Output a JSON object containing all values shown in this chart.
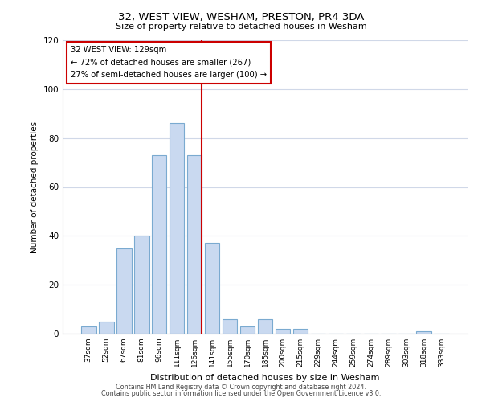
{
  "title": "32, WEST VIEW, WESHAM, PRESTON, PR4 3DA",
  "subtitle": "Size of property relative to detached houses in Wesham",
  "xlabel": "Distribution of detached houses by size in Wesham",
  "ylabel": "Number of detached properties",
  "bar_labels": [
    "37sqm",
    "52sqm",
    "67sqm",
    "81sqm",
    "96sqm",
    "111sqm",
    "126sqm",
    "141sqm",
    "155sqm",
    "170sqm",
    "185sqm",
    "200sqm",
    "215sqm",
    "229sqm",
    "244sqm",
    "259sqm",
    "274sqm",
    "289sqm",
    "303sqm",
    "318sqm",
    "333sqm"
  ],
  "bar_values": [
    3,
    5,
    35,
    40,
    73,
    86,
    73,
    37,
    6,
    3,
    6,
    2,
    2,
    0,
    0,
    0,
    0,
    0,
    0,
    1,
    0
  ],
  "bar_color": "#c9d9f0",
  "bar_edge_color": "#7aaad0",
  "highlight_bar_index": 6,
  "highlight_line_color": "#cc0000",
  "annotation_text_line1": "32 WEST VIEW: 129sqm",
  "annotation_text_line2": "← 72% of detached houses are smaller (267)",
  "annotation_text_line3": "27% of semi-detached houses are larger (100) →",
  "annotation_box_color": "#ffffff",
  "annotation_box_edge_color": "#cc0000",
  "ylim": [
    0,
    120
  ],
  "yticks": [
    0,
    20,
    40,
    60,
    80,
    100,
    120
  ],
  "footer_line1": "Contains HM Land Registry data © Crown copyright and database right 2024.",
  "footer_line2": "Contains public sector information licensed under the Open Government Licence v3.0.",
  "bg_color": "#ffffff",
  "grid_color": "#d0d8e8"
}
